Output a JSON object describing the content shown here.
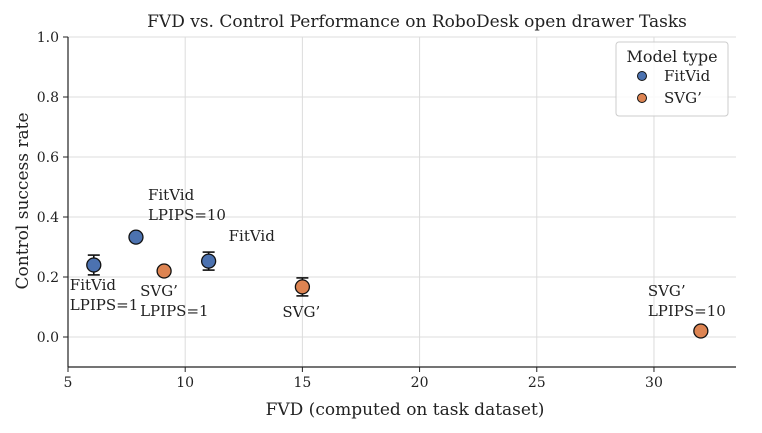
{
  "chart_data": {
    "type": "scatter",
    "title": "FVD vs. Control Performance on RoboDesk open drawer Tasks",
    "xlabel": "FVD (computed on task dataset)",
    "ylabel": "Control success rate",
    "xlim": [
      5,
      33.5
    ],
    "ylim": [
      -0.1,
      1.0
    ],
    "xticks": [
      5,
      10,
      15,
      20,
      25,
      30
    ],
    "yticks": [
      0.0,
      0.2,
      0.4,
      0.6,
      0.8,
      1.0
    ],
    "xtick_labels": [
      "5",
      "10",
      "15",
      "20",
      "25",
      "30"
    ],
    "ytick_labels": [
      "0.0",
      "0.2",
      "0.4",
      "0.6",
      "0.8",
      "1.0"
    ],
    "grid": true,
    "legend": {
      "title": "Model type",
      "placement": "top-right",
      "entries": [
        {
          "label": "FitVid",
          "color": "#4c72b0"
        },
        {
          "label": "SVG’",
          "color": "#dd8452"
        }
      ]
    },
    "series": [
      {
        "name": "FitVid",
        "color": "#4c72b0",
        "points": [
          {
            "x": 6.1,
            "y": 0.24,
            "err": 0.033,
            "label": [
              "FitVid",
              "LPIPS=1"
            ],
            "label_pos": "below"
          },
          {
            "x": 7.9,
            "y": 0.333,
            "err": 0,
            "label": [
              "FitVid",
              "LPIPS=10"
            ],
            "label_pos": "above"
          },
          {
            "x": 11.0,
            "y": 0.253,
            "err": 0.03,
            "label": [
              "FitVid"
            ],
            "label_pos": "above-right"
          }
        ]
      },
      {
        "name": "SVG’",
        "color": "#dd8452",
        "points": [
          {
            "x": 9.1,
            "y": 0.22,
            "err": 0,
            "label": [
              "SVG’",
              "LPIPS=1"
            ],
            "label_pos": "below"
          },
          {
            "x": 15.0,
            "y": 0.167,
            "err": 0.03,
            "label": [
              "SVG’"
            ],
            "label_pos": "below"
          },
          {
            "x": 32.0,
            "y": 0.02,
            "err": 0,
            "label": [
              "SVG’",
              "LPIPS=10"
            ],
            "label_pos": "above-left"
          }
        ]
      }
    ]
  }
}
